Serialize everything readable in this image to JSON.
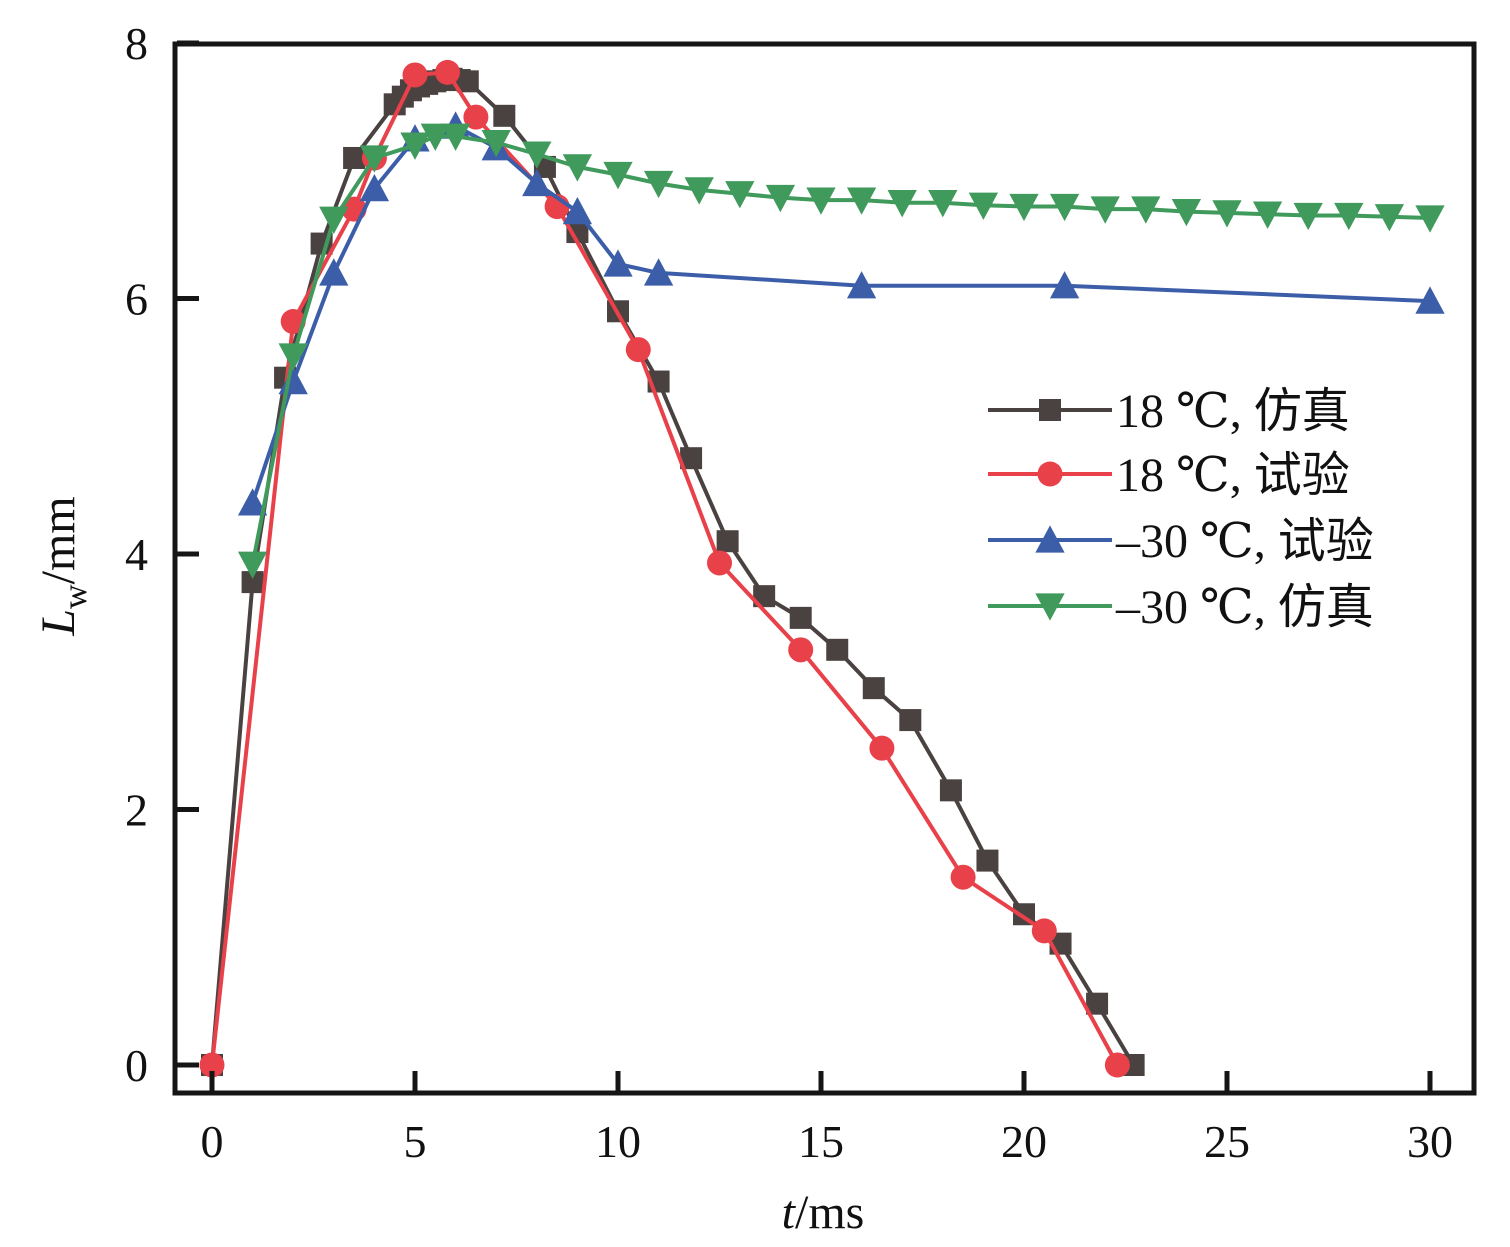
{
  "chart_data": {
    "type": "line",
    "title": "",
    "xlabel_italic": "t",
    "xlabel_unit": "/ms",
    "ylabel_italic": "L",
    "ylabel_sub": "w",
    "ylabel_unit": "/mm",
    "xlim": [
      -0.9,
      31.0
    ],
    "ylim": [
      -0.22,
      8.0
    ],
    "xticks": [
      0,
      5,
      10,
      15,
      20,
      25,
      30
    ],
    "yticks": [
      0,
      2,
      4,
      6,
      8
    ],
    "xtick_labels": [
      "0",
      "5",
      "10",
      "15",
      "20",
      "25",
      "30"
    ],
    "ytick_labels": [
      "0",
      "2",
      "4",
      "6",
      "8"
    ],
    "grid": false,
    "legend_position": "center-right",
    "series": [
      {
        "name": "18 ℃, 仿真",
        "color": "#4a4240",
        "marker": "square",
        "x": [
          0,
          1.0,
          1.8,
          2.7,
          3.5,
          4.5,
          4.7,
          4.9,
          5.1,
          5.3,
          5.5,
          5.7,
          5.9,
          6.1,
          6.3,
          7.2,
          8.2,
          9.0,
          10.0,
          11.0,
          11.8,
          12.7,
          13.6,
          14.5,
          15.4,
          16.3,
          17.2,
          18.2,
          19.1,
          20.0,
          20.9,
          21.8,
          22.7
        ],
        "y": [
          0,
          3.78,
          5.38,
          6.43,
          7.1,
          7.52,
          7.58,
          7.63,
          7.66,
          7.68,
          7.7,
          7.71,
          7.72,
          7.71,
          7.7,
          7.43,
          7.03,
          6.52,
          5.9,
          5.35,
          4.75,
          4.1,
          3.67,
          3.5,
          3.25,
          2.95,
          2.7,
          2.15,
          1.6,
          1.18,
          0.95,
          0.48,
          0
        ]
      },
      {
        "name": "18 ℃, 试验",
        "color": "#e8414a",
        "marker": "circle",
        "x": [
          0,
          2.0,
          3.5,
          4.0,
          5.0,
          5.8,
          6.5,
          8.5,
          10.5,
          12.5,
          14.5,
          16.5,
          18.5,
          20.5,
          22.3
        ],
        "y": [
          0,
          5.82,
          6.7,
          7.1,
          7.75,
          7.77,
          7.42,
          6.72,
          5.6,
          3.93,
          3.25,
          2.48,
          1.47,
          1.05,
          0
        ]
      },
      {
        "name": "–30 ℃, 试验",
        "color": "#3c5ea8",
        "marker": "triangle-up",
        "x": [
          1,
          2,
          3,
          4,
          5,
          6,
          7,
          8,
          9,
          10,
          11,
          16,
          21,
          30
        ],
        "y": [
          4.4,
          5.35,
          6.2,
          6.86,
          7.25,
          7.35,
          7.18,
          6.9,
          6.68,
          6.27,
          6.2,
          6.1,
          6.1,
          5.98
        ]
      },
      {
        "name": "–30 ℃, 仿真",
        "color": "#3f9a5c",
        "marker": "triangle-down",
        "x": [
          1,
          2,
          3,
          4,
          5,
          5.5,
          6,
          7,
          8,
          9,
          10,
          11,
          12,
          13,
          14,
          15,
          16,
          17,
          18,
          19,
          20,
          21,
          22,
          23,
          24,
          25,
          26,
          27,
          28,
          29,
          30
        ],
        "y": [
          3.92,
          5.55,
          6.62,
          7.1,
          7.2,
          7.27,
          7.27,
          7.22,
          7.13,
          7.03,
          6.97,
          6.9,
          6.85,
          6.82,
          6.79,
          6.77,
          6.77,
          6.75,
          6.75,
          6.73,
          6.72,
          6.72,
          6.7,
          6.7,
          6.68,
          6.67,
          6.66,
          6.65,
          6.65,
          6.64,
          6.63
        ]
      }
    ]
  }
}
